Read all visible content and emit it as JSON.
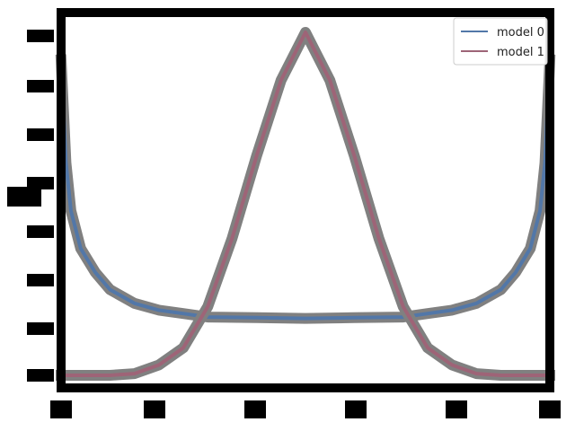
{
  "chart_data": {
    "type": "line",
    "x_range": [
      0,
      1
    ],
    "y_range": [
      0,
      1
    ],
    "grid": false,
    "legend_position": "top-right",
    "series": [
      {
        "name": "model 0",
        "color": "#5277a8",
        "x": [
          0,
          0.01,
          0.02,
          0.04,
          0.07,
          0.1,
          0.15,
          0.2,
          0.25,
          0.3,
          0.4,
          0.5,
          0.6,
          0.7,
          0.75,
          0.8,
          0.85,
          0.9,
          0.93,
          0.96,
          0.98,
          0.99,
          1
        ],
        "y": [
          0.92,
          0.62,
          0.48,
          0.37,
          0.3,
          0.25,
          0.21,
          0.19,
          0.18,
          0.17,
          0.168,
          0.166,
          0.168,
          0.17,
          0.18,
          0.19,
          0.21,
          0.25,
          0.3,
          0.37,
          0.48,
          0.62,
          0.92
        ]
      },
      {
        "name": "model 1",
        "color": "#9e6477",
        "x": [
          0,
          0.1,
          0.15,
          0.2,
          0.25,
          0.3,
          0.35,
          0.4,
          0.45,
          0.5,
          0.55,
          0.6,
          0.65,
          0.7,
          0.75,
          0.8,
          0.85,
          0.9,
          1
        ],
        "y": [
          0,
          0,
          0.005,
          0.03,
          0.08,
          0.2,
          0.4,
          0.64,
          0.86,
          1.0,
          0.86,
          0.64,
          0.4,
          0.2,
          0.08,
          0.03,
          0.005,
          0,
          0
        ]
      }
    ]
  }
}
